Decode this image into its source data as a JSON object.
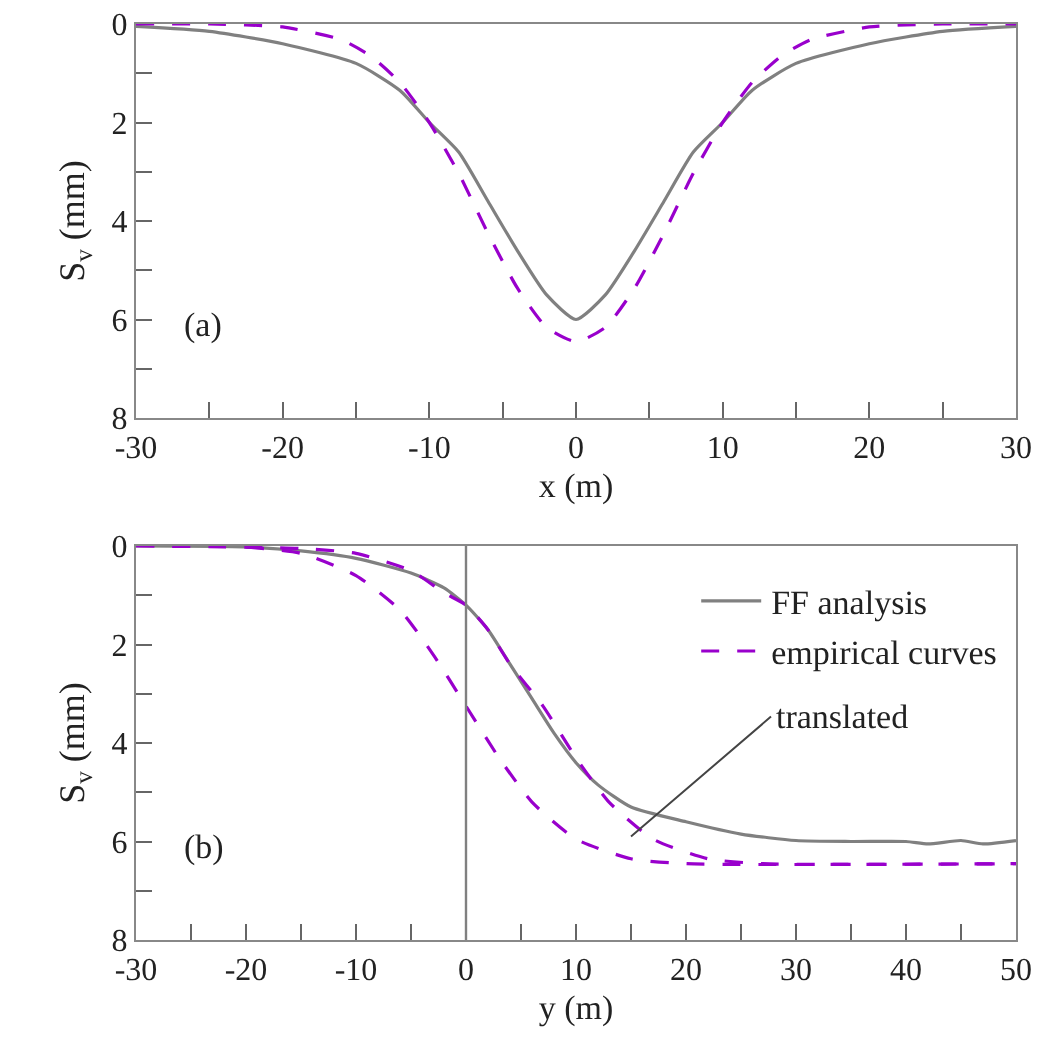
{
  "chart_data": [
    {
      "type": "line",
      "xlabel": "x (m)",
      "ylabel": "S$_{v}$ (mm)",
      "annotations": [
        "(a)"
      ],
      "legend": false,
      "grid": false,
      "xlim": [
        -30,
        30
      ],
      "ylim": [
        8,
        0
      ],
      "xticks": [
        -30,
        {
          "value": -25,
          "label": null
        },
        -20,
        {
          "value": -15,
          "label": null
        },
        -10,
        {
          "value": -5,
          "label": null
        },
        0,
        {
          "value": 5,
          "label": null
        },
        10,
        {
          "value": 15,
          "label": null
        },
        20,
        {
          "value": 25,
          "label": null
        },
        30
      ],
      "yticks": [
        0,
        {
          "value": 1,
          "label": null
        },
        2,
        {
          "value": 3,
          "label": null
        },
        4,
        {
          "value": 5,
          "label": null
        },
        6,
        {
          "value": 7,
          "label": null
        },
        8
      ],
      "series": [
        {
          "color": "#808080",
          "line_style": "solid",
          "x": [
            -30,
            -25,
            -20,
            -15,
            -12,
            -10,
            -8,
            -6,
            -4,
            -2,
            0,
            2,
            4,
            6,
            8,
            10,
            12,
            15,
            20,
            25,
            30
          ],
          "values": [
            0.05,
            0.15,
            0.4,
            0.8,
            1.35,
            2.0,
            2.6,
            3.6,
            4.6,
            5.5,
            6.0,
            5.5,
            4.6,
            3.6,
            2.6,
            2.0,
            1.35,
            0.8,
            0.4,
            0.15,
            0.05
          ]
        },
        {
          "color": "#9900cc",
          "line_style": "dashed",
          "x": [
            -30,
            -25,
            -20,
            -16,
            -14,
            -12,
            -10,
            -8,
            -6,
            -4,
            -2,
            0,
            2,
            4,
            6,
            8,
            10,
            12,
            14,
            16,
            20,
            25,
            30
          ],
          "values": [
            0,
            0,
            0.06,
            0.32,
            0.65,
            1.19,
            2.0,
            3.03,
            4.25,
            5.36,
            6.16,
            6.45,
            6.16,
            5.36,
            4.25,
            3.03,
            2.0,
            1.19,
            0.65,
            0.32,
            0.06,
            0,
            0
          ]
        }
      ]
    },
    {
      "type": "line",
      "xlabel": "y (m)",
      "ylabel": "S$_{v}$ (mm)",
      "legend": "top right",
      "grid": false,
      "annotations": [
        "(b)",
        {
          "text": "translated",
          "x": 15,
          "y": 5.9
        }
      ],
      "ref_lines": [
        {
          "axis": "x",
          "value": 0,
          "color": "#808080"
        }
      ],
      "xlim": [
        -30,
        50
      ],
      "ylim": [
        8,
        0
      ],
      "xticks": [
        -30,
        {
          "value": -25,
          "label": null
        },
        -20,
        {
          "value": -15,
          "label": null
        },
        -10,
        {
          "value": -5,
          "label": null
        },
        0,
        {
          "value": 5,
          "label": null
        },
        10,
        {
          "value": 15,
          "label": null
        },
        20,
        {
          "value": 25,
          "label": null
        },
        30,
        {
          "value": 35,
          "label": null
        },
        40,
        {
          "value": 45,
          "label": null
        },
        50
      ],
      "yticks": [
        0,
        {
          "value": 1,
          "label": null
        },
        2,
        {
          "value": 3,
          "label": null
        },
        4,
        {
          "value": 5,
          "label": null
        },
        6,
        {
          "value": 7,
          "label": null
        },
        8
      ],
      "series": [
        {
          "name": "FF analysis",
          "color": "#808080",
          "line_style": "solid",
          "x": [
            -30,
            -20,
            -15,
            -10,
            -5,
            -2,
            0,
            2,
            4,
            6,
            8,
            10,
            12,
            15,
            20,
            25,
            30,
            35,
            40,
            42,
            45,
            47,
            50
          ],
          "values": [
            0,
            0.02,
            0.1,
            0.25,
            0.55,
            0.85,
            1.2,
            1.7,
            2.4,
            3.1,
            3.8,
            4.4,
            4.85,
            5.3,
            5.6,
            5.85,
            5.98,
            6.0,
            6.0,
            6.05,
            5.98,
            6.05,
            5.98
          ]
        },
        {
          "name": "empirical curves",
          "color": "#9900cc",
          "line_style": "dashed",
          "x": [
            -30,
            -15,
            -10,
            -5,
            -2,
            0,
            2,
            4,
            7,
            10,
            13,
            17,
            22,
            27,
            50
          ],
          "values": [
            0,
            0.05,
            0.15,
            0.5,
            0.95,
            1.2,
            1.7,
            2.4,
            3.25,
            4.3,
            5.2,
            5.95,
            6.35,
            6.45,
            6.45
          ]
        },
        {
          "color": "#9900cc",
          "line_style": "dashed",
          "x": [
            -20,
            -15,
            -10,
            -6,
            -3,
            0,
            3,
            6,
            10,
            15,
            20,
            50
          ],
          "values": [
            0.02,
            0.15,
            0.6,
            1.3,
            2.2,
            3.25,
            4.3,
            5.2,
            5.95,
            6.35,
            6.45,
            6.45
          ]
        }
      ]
    }
  ]
}
